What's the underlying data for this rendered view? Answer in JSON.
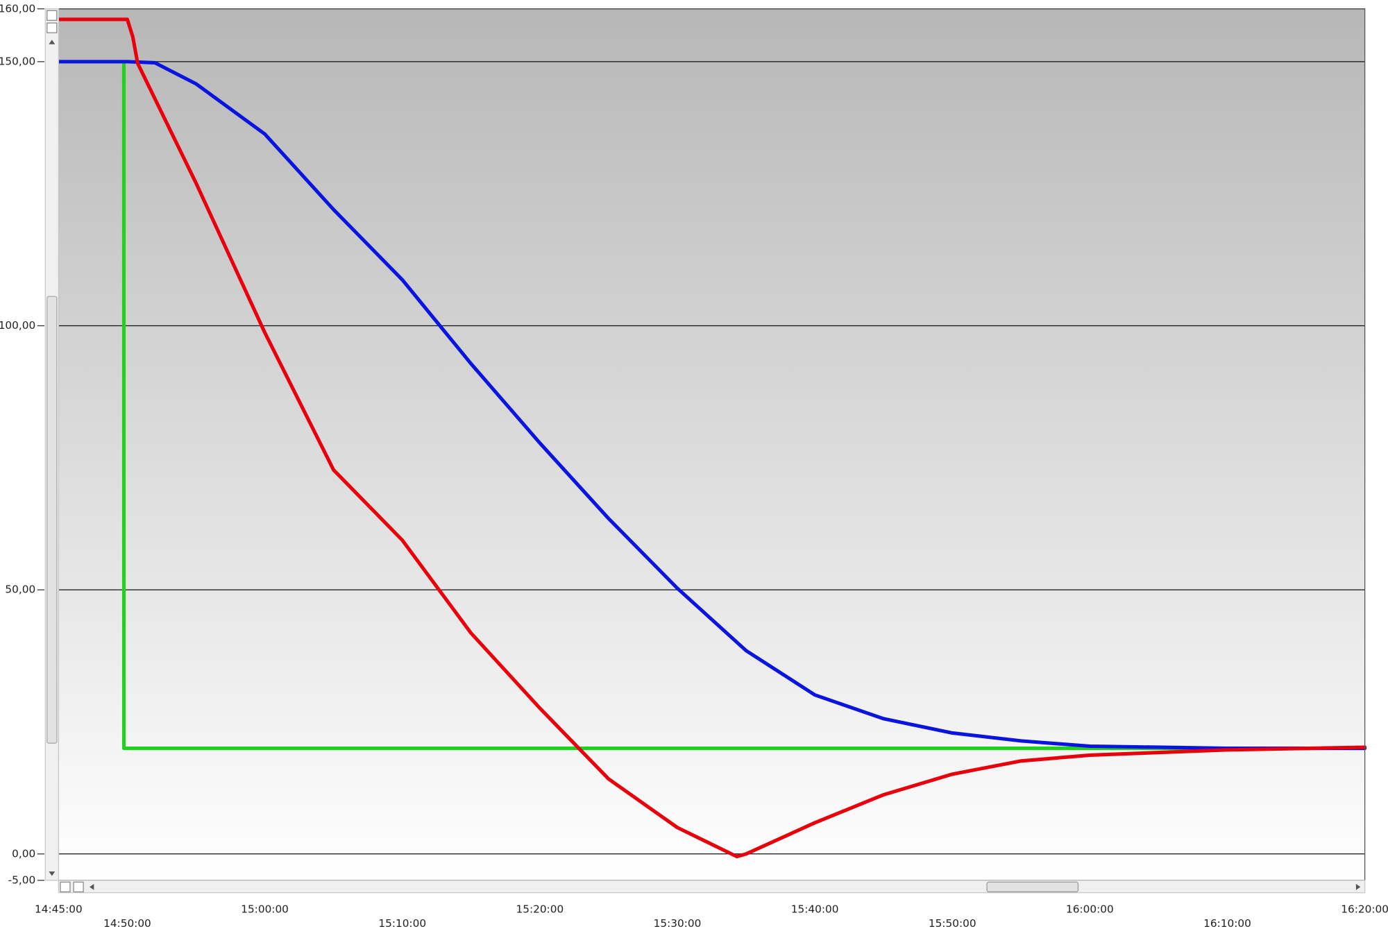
{
  "chart_data": {
    "type": "line",
    "xlim": [
      "14:45:00",
      "16:20:00"
    ],
    "xticks": [
      "14:45:00",
      "14:50:00",
      "15:00:00",
      "15:10:00",
      "15:20:00",
      "15:30:00",
      "15:40:00",
      "15:50:00",
      "16:00:00",
      "16:10:00",
      "16:20:00"
    ],
    "ylim": [
      -5,
      160
    ],
    "yticks": [
      {
        "value": 160,
        "label": "160,00"
      },
      {
        "value": 150,
        "label": "150,00"
      },
      {
        "value": 100,
        "label": "100,00"
      },
      {
        "value": 50,
        "label": "50,00"
      },
      {
        "value": 0,
        "label": "0,00"
      },
      {
        "value": -5,
        "label": "-5,00"
      }
    ],
    "grid": "y",
    "series": [
      {
        "color": "#1ed21e",
        "x": [
          "14:45:00",
          "14:49:45",
          "14:49:45",
          "16:20:00"
        ],
        "values": [
          150,
          150,
          20,
          20
        ]
      },
      {
        "color": "#0a14e0",
        "x": [
          "14:45:00",
          "14:50:00",
          "14:52:00",
          "14:55:00",
          "15:00:00",
          "15:05:00",
          "15:10:00",
          "15:15:00",
          "15:20:00",
          "15:25:00",
          "15:30:00",
          "15:35:00",
          "15:40:00",
          "15:45:00",
          "15:50:00",
          "15:55:00",
          "16:00:00",
          "16:10:00",
          "16:20:00"
        ],
        "values": [
          150,
          150,
          149.8,
          145.8,
          136.3,
          122,
          108.7,
          92.8,
          77.8,
          63.5,
          50.3,
          38.5,
          30.1,
          25.6,
          22.9,
          21.4,
          20.4,
          20,
          20
        ]
      },
      {
        "color": "#e8000b",
        "x": [
          "14:45:00",
          "14:50:00",
          "14:50:24",
          "14:50:45",
          "14:55:00",
          "15:00:00",
          "15:05:00",
          "15:10:00",
          "15:15:00",
          "15:20:00",
          "15:25:00",
          "15:30:00",
          "15:34:20",
          "15:35:00",
          "15:40:00",
          "15:45:00",
          "15:50:00",
          "15:55:00",
          "16:00:00",
          "16:10:00",
          "16:20:00"
        ],
        "values": [
          158,
          158,
          154.7,
          149.7,
          127,
          98.7,
          72.7,
          59.4,
          41.8,
          27.6,
          14.2,
          5,
          -0.5,
          0,
          5.9,
          11.2,
          15.1,
          17.6,
          18.7,
          19.7,
          20.2
        ]
      }
    ]
  }
}
